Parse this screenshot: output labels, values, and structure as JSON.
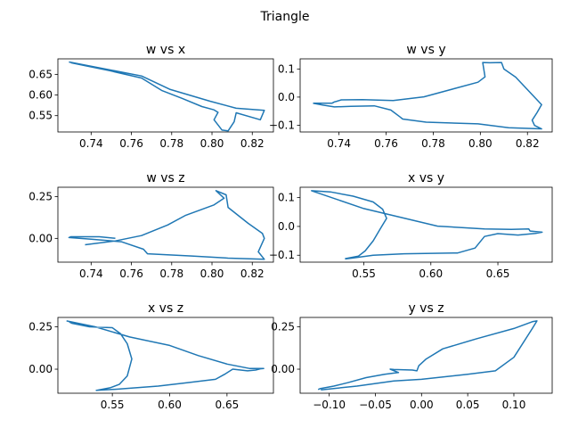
{
  "figure": {
    "title": "Triangle"
  },
  "chart_data": [
    {
      "type": "line",
      "title": "w vs x",
      "color": "#1f77b4",
      "xlim": [
        0.7235,
        0.8305
      ],
      "ylim": [
        0.5105,
        0.6875
      ],
      "xticks": [
        0.74,
        0.76,
        0.78,
        0.8,
        0.82
      ],
      "xtick_labels": [
        "0.74",
        "0.76",
        "0.78",
        "0.80",
        "0.82"
      ],
      "yticks": [
        0.55,
        0.6,
        0.65
      ],
      "ytick_labels": [
        "0.55",
        "0.60",
        "0.65"
      ],
      "series": [
        {
          "x": [
            0.729,
            0.765,
            0.779,
            0.799,
            0.812,
            0.826,
            0.824,
            0.812,
            0.811,
            0.808,
            0.805,
            0.801,
            0.803,
            0.801,
            0.795,
            0.785,
            0.775,
            0.765,
            0.749,
            0.737,
            0.73
          ],
          "y": [
            0.68,
            0.646,
            0.614,
            0.585,
            0.568,
            0.563,
            0.54,
            0.557,
            0.535,
            0.513,
            0.515,
            0.54,
            0.558,
            0.564,
            0.572,
            0.592,
            0.611,
            0.641,
            0.659,
            0.671,
            0.678
          ]
        }
      ]
    },
    {
      "type": "line",
      "title": "w vs y",
      "color": "#1f77b4",
      "xlim": [
        0.7235,
        0.8305
      ],
      "ylim": [
        -0.124,
        0.136
      ],
      "xticks": [
        0.74,
        0.76,
        0.78,
        0.8,
        0.82
      ],
      "xtick_labels": [
        "0.74",
        "0.76",
        "0.78",
        "0.80",
        "0.82"
      ],
      "yticks": [
        -0.1,
        0.0,
        0.1
      ],
      "ytick_labels": [
        "−0.1",
        "0.0",
        "0.1"
      ],
      "series": [
        {
          "x": [
            0.729,
            0.737,
            0.738,
            0.739,
            0.741,
            0.75,
            0.763,
            0.776,
            0.799,
            0.802,
            0.801,
            0.804,
            0.809,
            0.81,
            0.815,
            0.826,
            0.824,
            0.822,
            0.823,
            0.826,
            0.812,
            0.799,
            0.777,
            0.767,
            0.766,
            0.762,
            0.755,
            0.745,
            0.738,
            0.733,
            0.729
          ],
          "y": [
            -0.022,
            -0.022,
            -0.017,
            -0.015,
            -0.01,
            -0.009,
            -0.012,
            0.001,
            0.053,
            0.072,
            0.123,
            0.122,
            0.123,
            0.1,
            0.071,
            -0.027,
            -0.056,
            -0.082,
            -0.101,
            -0.113,
            -0.109,
            -0.095,
            -0.089,
            -0.078,
            -0.071,
            -0.046,
            -0.031,
            -0.033,
            -0.035,
            -0.028,
            -0.022
          ]
        }
      ]
    },
    {
      "type": "line",
      "title": "w vs z",
      "color": "#1f77b4",
      "xlim": [
        0.7235,
        0.8305
      ],
      "ylim": [
        -0.142,
        0.3055
      ],
      "xticks": [
        0.74,
        0.76,
        0.78,
        0.8,
        0.82
      ],
      "xtick_labels": [
        "0.74",
        "0.76",
        "0.78",
        "0.80",
        "0.82"
      ],
      "yticks": [
        0.0,
        0.25
      ],
      "ytick_labels": [
        "0.00",
        "0.25"
      ],
      "series": [
        {
          "x": [
            0.737,
            0.752,
            0.765,
            0.778,
            0.787,
            0.801,
            0.806,
            0.802,
            0.807,
            0.808,
            0.818,
            0.825,
            0.826,
            0.823,
            0.826,
            0.808,
            0.79,
            0.768,
            0.766,
            0.755,
            0.74,
            0.729,
            0.73,
            0.744,
            0.752
          ],
          "y": [
            -0.038,
            -0.015,
            0.017,
            0.08,
            0.138,
            0.2,
            0.24,
            0.285,
            0.26,
            0.185,
            0.09,
            0.03,
            0.0,
            -0.08,
            -0.125,
            -0.118,
            -0.105,
            -0.092,
            -0.065,
            -0.02,
            -0.005,
            0.005,
            0.01,
            0.01,
            0.0
          ]
        }
      ]
    },
    {
      "type": "line",
      "title": "x vs y",
      "color": "#1f77b4",
      "xlim": [
        0.5025,
        0.6905
      ],
      "ylim": [
        -0.124,
        0.136
      ],
      "xticks": [
        0.55,
        0.6,
        0.65
      ],
      "xtick_labels": [
        "0.55",
        "0.60",
        "0.65"
      ],
      "yticks": [
        -0.1,
        0.0,
        0.1
      ],
      "ytick_labels": [
        "−0.1",
        "0.0",
        "0.1"
      ],
      "series": [
        {
          "x": [
            0.536,
            0.546,
            0.551,
            0.557,
            0.562,
            0.567,
            0.564,
            0.557,
            0.542,
            0.525,
            0.511,
            0.55,
            0.605,
            0.64,
            0.66,
            0.673,
            0.674,
            0.683,
            0.678,
            0.665,
            0.65,
            0.64,
            0.633,
            0.62,
            0.58,
            0.557,
            0.541,
            0.536
          ],
          "y": [
            -0.112,
            -0.103,
            -0.085,
            -0.05,
            -0.01,
            0.028,
            0.06,
            0.085,
            0.105,
            0.12,
            0.124,
            0.062,
            0.001,
            -0.009,
            -0.01,
            -0.009,
            -0.016,
            -0.02,
            -0.024,
            -0.03,
            -0.025,
            -0.035,
            -0.075,
            -0.092,
            -0.095,
            -0.1,
            -0.11,
            -0.113
          ]
        }
      ]
    },
    {
      "type": "line",
      "title": "x vs z",
      "color": "#1f77b4",
      "xlim": [
        0.5025,
        0.6905
      ],
      "ylim": [
        -0.142,
        0.3055
      ],
      "xticks": [
        0.55,
        0.6,
        0.65
      ],
      "xtick_labels": [
        "0.55",
        "0.60",
        "0.65"
      ],
      "yticks": [
        0.0,
        0.25
      ],
      "ytick_labels": [
        "0.00",
        "0.25"
      ],
      "series": [
        {
          "x": [
            0.51,
            0.535,
            0.565,
            0.6,
            0.625,
            0.65,
            0.67,
            0.682,
            0.679,
            0.675,
            0.668,
            0.655,
            0.648,
            0.64,
            0.615,
            0.59,
            0.555,
            0.536,
            0.548,
            0.556,
            0.563,
            0.567,
            0.563,
            0.557,
            0.55,
            0.53,
            0.515,
            0.512
          ],
          "y": [
            0.285,
            0.25,
            0.19,
            0.14,
            0.08,
            0.03,
            0.004,
            0.004,
            0.002,
            -0.005,
            -0.01,
            0.0,
            -0.03,
            -0.06,
            -0.08,
            -0.1,
            -0.118,
            -0.125,
            -0.11,
            -0.09,
            -0.04,
            0.06,
            0.15,
            0.21,
            0.245,
            0.25,
            0.27,
            0.28
          ]
        }
      ]
    },
    {
      "type": "line",
      "title": "y vs z",
      "color": "#1f77b4",
      "xlim": [
        -0.1315,
        0.1415
      ],
      "ylim": [
        -0.142,
        0.3055
      ],
      "xticks": [
        -0.1,
        -0.05,
        0.0,
        0.05,
        0.1
      ],
      "xtick_labels": [
        "−0.10",
        "−0.05",
        "0.00",
        "0.05",
        "0.10"
      ],
      "yticks": [
        0.0,
        0.25
      ],
      "ytick_labels": [
        "0.00",
        "0.25"
      ],
      "series": [
        {
          "x": [
            -0.109,
            -0.07,
            -0.03,
            0.0,
            0.05,
            0.08,
            0.1,
            0.12,
            0.125,
            0.12,
            0.1,
            0.06,
            0.023,
            0.005,
            -0.003,
            -0.005,
            -0.01,
            -0.03,
            -0.034,
            -0.025,
            -0.04,
            -0.06,
            -0.08,
            -0.095,
            -0.11,
            -0.112
          ],
          "y": [
            -0.122,
            -0.1,
            -0.07,
            -0.06,
            -0.03,
            -0.01,
            0.07,
            0.24,
            0.285,
            0.28,
            0.24,
            0.18,
            0.12,
            0.06,
            0.02,
            -0.01,
            -0.005,
            -0.002,
            0.0,
            -0.02,
            -0.03,
            -0.05,
            -0.08,
            -0.1,
            -0.115,
            -0.12
          ]
        }
      ]
    }
  ]
}
